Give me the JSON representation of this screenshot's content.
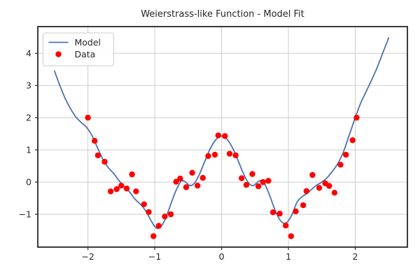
{
  "figure": {
    "bg_color": "#ffffff",
    "grid_color": "#cccccc",
    "spine_color": "#262626",
    "text_color": "#262626",
    "tick_font_size": 12.5,
    "legend_font_size": 12.5
  },
  "chart_data": {
    "type": "line",
    "title": "Weierstrass-like Function - Model Fit",
    "xlabel": "",
    "ylabel": "",
    "xlim": [
      -2.75,
      2.78
    ],
    "ylim": [
      -2.02,
      4.83
    ],
    "x_ticks": [
      -2,
      -1,
      0,
      1,
      2
    ],
    "x_tick_labels": [
      "−2",
      "−1",
      "0",
      "1",
      "2"
    ],
    "y_ticks": [
      -1,
      0,
      1,
      2,
      3,
      4
    ],
    "y_tick_labels": [
      "−1",
      "0",
      "1",
      "2",
      "3",
      "4"
    ],
    "grid": true,
    "legend": {
      "position": "upper left",
      "entries": [
        {
          "label": "Model",
          "marker": "line",
          "color": "#4c72b0"
        },
        {
          "label": "Data",
          "marker": "dot",
          "color": "#ff0000"
        }
      ]
    },
    "series": [
      {
        "name": "Model",
        "kind": "line",
        "color": "#4c72b0",
        "width": 1.8,
        "points": [
          [
            -2.5,
            3.45
          ],
          [
            -2.42,
            3.0
          ],
          [
            -2.34,
            2.6
          ],
          [
            -2.26,
            2.28
          ],
          [
            -2.18,
            2.02
          ],
          [
            -2.1,
            1.85
          ],
          [
            -2.02,
            1.7
          ],
          [
            -1.94,
            1.45
          ],
          [
            -1.86,
            1.08
          ],
          [
            -1.78,
            0.72
          ],
          [
            -1.7,
            0.46
          ],
          [
            -1.62,
            0.28
          ],
          [
            -1.54,
            0.06
          ],
          [
            -1.46,
            -0.14
          ],
          [
            -1.38,
            -0.3
          ],
          [
            -1.3,
            -0.52
          ],
          [
            -1.22,
            -0.68
          ],
          [
            -1.14,
            -0.88
          ],
          [
            -1.06,
            -1.18
          ],
          [
            -1.0,
            -1.38
          ],
          [
            -0.95,
            -1.44
          ],
          [
            -0.9,
            -1.36
          ],
          [
            -0.84,
            -1.14
          ],
          [
            -0.78,
            -0.8
          ],
          [
            -0.72,
            -0.46
          ],
          [
            -0.66,
            -0.16
          ],
          [
            -0.6,
            0.04
          ],
          [
            -0.54,
            0.0
          ],
          [
            -0.47,
            -0.11
          ],
          [
            -0.4,
            -0.02
          ],
          [
            -0.33,
            0.25
          ],
          [
            -0.26,
            0.6
          ],
          [
            -0.19,
            0.95
          ],
          [
            -0.12,
            1.22
          ],
          [
            -0.06,
            1.37
          ],
          [
            0,
            1.43
          ],
          [
            0.06,
            1.37
          ],
          [
            0.12,
            1.22
          ],
          [
            0.19,
            0.95
          ],
          [
            0.26,
            0.6
          ],
          [
            0.33,
            0.25
          ],
          [
            0.4,
            -0.02
          ],
          [
            0.47,
            -0.11
          ],
          [
            0.54,
            0.0
          ],
          [
            0.6,
            0.05
          ],
          [
            0.66,
            -0.12
          ],
          [
            0.72,
            -0.42
          ],
          [
            0.78,
            -0.76
          ],
          [
            0.84,
            -1.06
          ],
          [
            0.9,
            -1.24
          ],
          [
            0.95,
            -1.28
          ],
          [
            1.0,
            -1.2
          ],
          [
            1.06,
            -0.98
          ],
          [
            1.13,
            -0.62
          ],
          [
            1.2,
            -0.46
          ],
          [
            1.28,
            -0.35
          ],
          [
            1.35,
            -0.22
          ],
          [
            1.42,
            -0.1
          ],
          [
            1.5,
            0.0
          ],
          [
            1.58,
            0.14
          ],
          [
            1.66,
            0.34
          ],
          [
            1.74,
            0.58
          ],
          [
            1.82,
            0.92
          ],
          [
            1.9,
            1.4
          ],
          [
            2.0,
            2.0
          ],
          [
            2.08,
            2.45
          ],
          [
            2.16,
            2.8
          ],
          [
            2.24,
            3.15
          ],
          [
            2.32,
            3.52
          ],
          [
            2.4,
            3.95
          ],
          [
            2.5,
            4.48
          ]
        ]
      },
      {
        "name": "Data",
        "kind": "scatter",
        "color": "#ff0000",
        "radius": 4.2,
        "points": [
          [
            -2.0,
            2.0
          ],
          [
            -1.9,
            1.28
          ],
          [
            -1.85,
            0.83
          ],
          [
            -1.75,
            0.63
          ],
          [
            -1.66,
            -0.29
          ],
          [
            -1.57,
            -0.22
          ],
          [
            -1.5,
            -0.11
          ],
          [
            -1.42,
            -0.2
          ],
          [
            -1.34,
            0.24
          ],
          [
            -1.28,
            -0.29
          ],
          [
            -1.16,
            -0.69
          ],
          [
            -1.09,
            -0.93
          ],
          [
            -1.02,
            -1.68
          ],
          [
            -0.94,
            -1.36
          ],
          [
            -0.85,
            -1.07
          ],
          [
            -0.76,
            -1.0
          ],
          [
            -0.68,
            0.01
          ],
          [
            -0.62,
            0.11
          ],
          [
            -0.53,
            -0.16
          ],
          [
            -0.44,
            0.29
          ],
          [
            -0.36,
            -0.11
          ],
          [
            -0.28,
            0.13
          ],
          [
            -0.2,
            0.81
          ],
          [
            -0.1,
            0.85
          ],
          [
            -0.05,
            1.45
          ],
          [
            0.05,
            1.43
          ],
          [
            0.12,
            0.88
          ],
          [
            0.21,
            0.83
          ],
          [
            0.3,
            0.12
          ],
          [
            0.37,
            -0.09
          ],
          [
            0.46,
            0.25
          ],
          [
            0.55,
            -0.13
          ],
          [
            0.62,
            0.0
          ],
          [
            0.7,
            0.04
          ],
          [
            0.77,
            -0.94
          ],
          [
            0.87,
            -0.98
          ],
          [
            0.96,
            -1.35
          ],
          [
            1.04,
            -1.68
          ],
          [
            1.11,
            -0.91
          ],
          [
            1.22,
            -0.72
          ],
          [
            1.27,
            -0.28
          ],
          [
            1.36,
            0.22
          ],
          [
            1.46,
            -0.18
          ],
          [
            1.55,
            -0.04
          ],
          [
            1.61,
            -0.12
          ],
          [
            1.69,
            -0.33
          ],
          [
            1.78,
            0.54
          ],
          [
            1.86,
            0.85
          ],
          [
            1.96,
            1.3
          ],
          [
            2.02,
            2.0
          ]
        ]
      }
    ]
  }
}
